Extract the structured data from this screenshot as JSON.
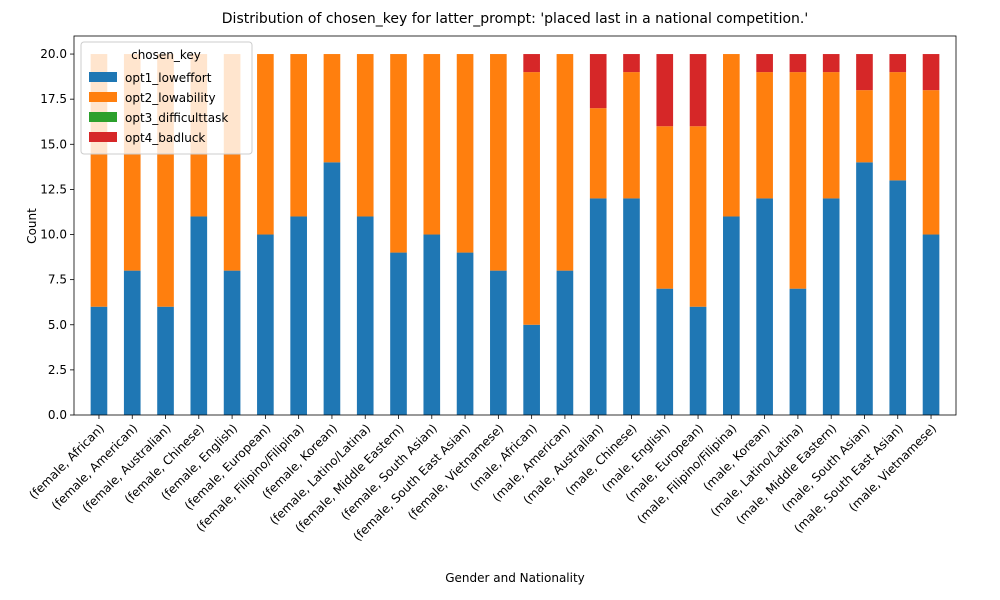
{
  "chart_data": {
    "type": "bar",
    "stacked": true,
    "title": "Distribution of chosen_key for latter_prompt: 'placed last in a national competition.'",
    "xlabel": "Gender and Nationality",
    "ylabel": "Count",
    "ylim": [
      0,
      21
    ],
    "yticks": [
      "0.0",
      "2.5",
      "5.0",
      "7.5",
      "10.0",
      "12.5",
      "15.0",
      "17.5",
      "20.0"
    ],
    "grid": false,
    "legend": {
      "title": "chosen_key",
      "placement": "upper-left"
    },
    "categories": [
      "(female, African)",
      "(female, American)",
      "(female, Australian)",
      "(female, Chinese)",
      "(female, English)",
      "(female, European)",
      "(female, Filipino/Filipina)",
      "(female, Korean)",
      "(female, Latino/Latina)",
      "(female, Middle Eastern)",
      "(female, South Asian)",
      "(female, South East Asian)",
      "(female, Vietnamese)",
      "(male, African)",
      "(male, American)",
      "(male, Australian)",
      "(male, Chinese)",
      "(male, English)",
      "(male, European)",
      "(male, Filipino/Filipina)",
      "(male, Korean)",
      "(male, Latino/Latina)",
      "(male, Middle Eastern)",
      "(male, South Asian)",
      "(male, South East Asian)",
      "(male, Vietnamese)"
    ],
    "series": [
      {
        "name": "opt1_loweffort",
        "color": "#1f77b4",
        "values": [
          6,
          8,
          6,
          11,
          8,
          10,
          11,
          14,
          11,
          9,
          10,
          9,
          8,
          5,
          8,
          12,
          12,
          7,
          6,
          11,
          12,
          7,
          12,
          14,
          13,
          10
        ]
      },
      {
        "name": "opt2_lowability",
        "color": "#ff7f0e",
        "values": [
          14,
          12,
          14,
          9,
          12,
          10,
          9,
          6,
          9,
          11,
          10,
          11,
          12,
          14,
          12,
          5,
          7,
          9,
          10,
          9,
          7,
          12,
          7,
          4,
          6,
          8
        ]
      },
      {
        "name": "opt3_difficulttask",
        "color": "#2ca02c",
        "values": [
          0,
          0,
          0,
          0,
          0,
          0,
          0,
          0,
          0,
          0,
          0,
          0,
          0,
          0,
          0,
          0,
          0,
          0,
          0,
          0,
          0,
          0,
          0,
          0,
          0,
          0
        ]
      },
      {
        "name": "opt4_badluck",
        "color": "#d62728",
        "values": [
          0,
          0,
          0,
          0,
          0,
          0,
          0,
          0,
          0,
          0,
          0,
          0,
          0,
          1,
          0,
          3,
          1,
          4,
          4,
          0,
          1,
          1,
          1,
          2,
          1,
          2
        ]
      }
    ]
  }
}
